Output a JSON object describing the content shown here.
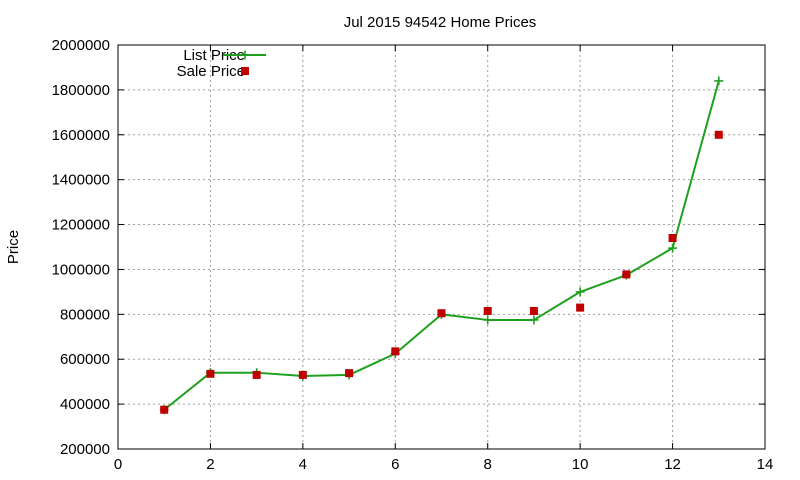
{
  "chart_data": {
    "type": "line",
    "title": "Jul 2015 94542 Home Prices",
    "xlabel": "",
    "ylabel": "Price",
    "xlim": [
      0,
      14
    ],
    "ylim": [
      200000,
      2000000
    ],
    "x_ticks": [
      0,
      2,
      4,
      6,
      8,
      10,
      12,
      14
    ],
    "y_ticks": [
      200000,
      400000,
      600000,
      800000,
      1000000,
      1200000,
      1400000,
      1600000,
      1800000,
      2000000
    ],
    "grid": true,
    "legend": "top-left",
    "series": [
      {
        "name": "List Price",
        "style": "line-with-plus-markers",
        "color": "#1ea01e",
        "x": [
          1,
          2,
          3,
          4,
          5,
          6,
          7,
          8,
          9,
          10,
          11,
          12,
          13
        ],
        "values": [
          375000,
          540000,
          540000,
          525000,
          530000,
          625000,
          800000,
          775000,
          775000,
          900000,
          975000,
          1095000,
          1840000
        ]
      },
      {
        "name": "Sale Price",
        "style": "square-markers",
        "color": "#c00000",
        "x": [
          1,
          2,
          3,
          4,
          5,
          6,
          7,
          8,
          9,
          10,
          11,
          12,
          13
        ],
        "values": [
          375000,
          535000,
          530000,
          530000,
          538000,
          635000,
          805000,
          815000,
          815000,
          830000,
          978000,
          1140000,
          1600000
        ]
      }
    ]
  }
}
